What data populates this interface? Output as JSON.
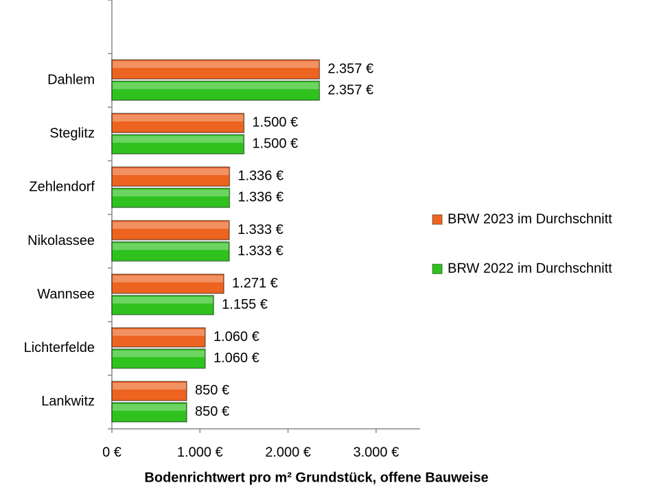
{
  "chart_data": {
    "type": "hbar",
    "xlabel": "Bodenrichtwert pro m² Grundstück, offene Bauweise",
    "categories": [
      null,
      "Dahlem",
      "Steglitz",
      "Zehlendorf",
      "Nikolassee",
      "Wannsee",
      "Lichterfelde",
      "Lankwitz"
    ],
    "series": [
      {
        "name": "BRW 2023 im Durchschnitt",
        "color": "#ec6420",
        "values": [
          null,
          2357,
          1500,
          1336,
          1333,
          1271,
          1060,
          850
        ],
        "value_labels": [
          null,
          "2.357 €",
          "1.500 €",
          "1.336 €",
          "1.333 €",
          "1.271 €",
          "1.060 €",
          "850 €"
        ]
      },
      {
        "name": "BRW 2022 im Durchschnitt",
        "color": "#2fc21f",
        "values": [
          null,
          2357,
          1500,
          1336,
          1333,
          1155,
          1060,
          850
        ],
        "value_labels": [
          null,
          "2.357 €",
          "1.500 €",
          "1.336 €",
          "1.333 €",
          "1.155 €",
          "1.060 €",
          "850 €"
        ]
      }
    ],
    "xlim": [
      0,
      3500
    ],
    "xticks": [
      {
        "value": 0,
        "label": "0 €"
      },
      {
        "value": 1000,
        "label": "1.000 €"
      },
      {
        "value": 2000,
        "label": "2.000 €"
      },
      {
        "value": 3000,
        "label": "3.000 €"
      }
    ],
    "grid": false,
    "legend": "right"
  }
}
